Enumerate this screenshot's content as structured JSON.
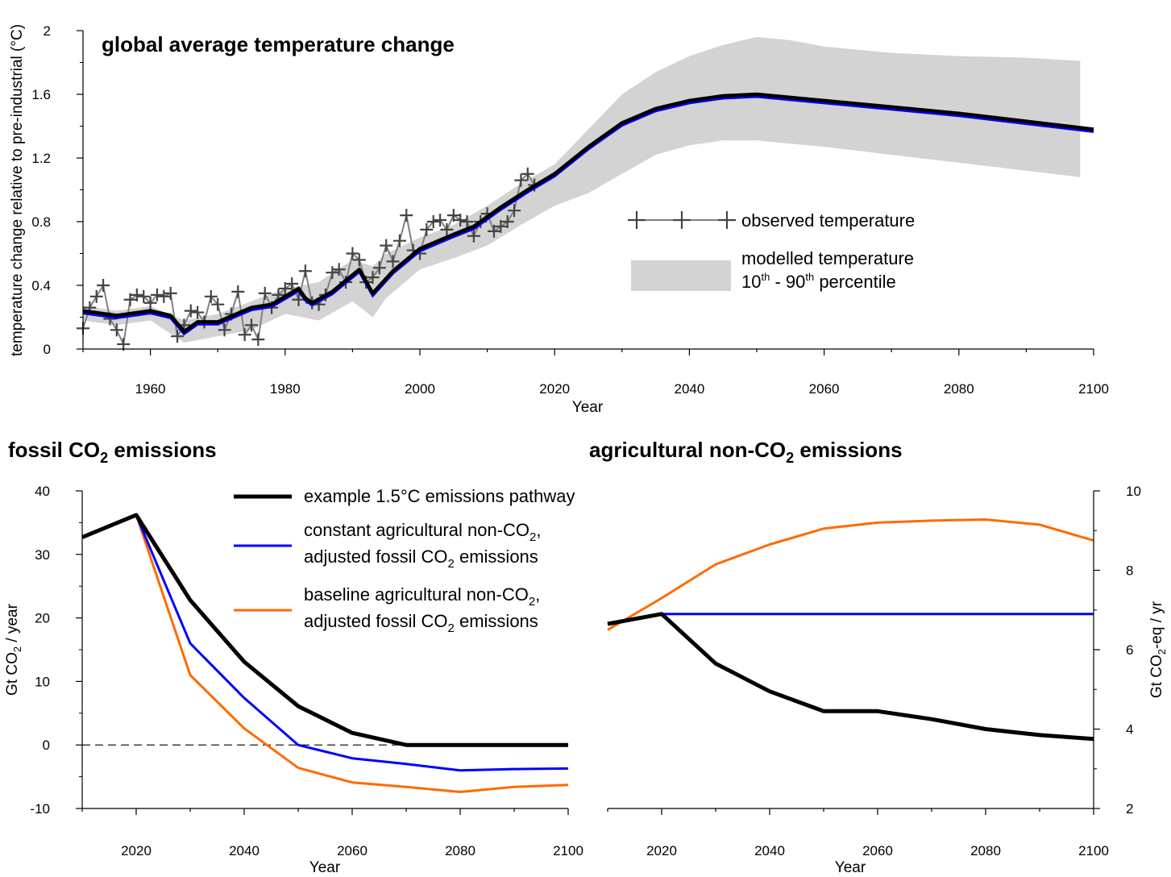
{
  "chart_data": [
    {
      "type": "line",
      "title": "global average temperature change",
      "xlabel": "Year",
      "ylabel": "temperature change relative to pre-industrial (°C)",
      "xlim": [
        1950,
        2100
      ],
      "ylim": [
        0,
        2
      ],
      "x_ticks": [
        1960,
        1980,
        2000,
        2020,
        2040,
        2060,
        2080,
        2100
      ],
      "y_ticks": [
        0,
        0.4,
        0.8,
        1.2,
        1.6,
        2
      ],
      "y_tick_labels": [
        "0",
        "0.4",
        "0.8",
        "1.2",
        "1.6",
        "2"
      ],
      "legend": {
        "observed": "observed temperature",
        "band_line1": "modelled temperature",
        "band_line2": "10th - 90th percentile"
      },
      "observed": {
        "x": [
          1950,
          1951,
          1952,
          1953,
          1954,
          1955,
          1956,
          1957,
          1958,
          1959,
          1960,
          1961,
          1962,
          1963,
          1964,
          1965,
          1966,
          1967,
          1968,
          1969,
          1970,
          1971,
          1972,
          1973,
          1974,
          1975,
          1976,
          1977,
          1978,
          1979,
          1980,
          1981,
          1982,
          1983,
          1984,
          1985,
          1986,
          1987,
          1988,
          1989,
          1990,
          1991,
          1992,
          1993,
          1994,
          1995,
          1996,
          1997,
          1998,
          1999,
          2000,
          2001,
          2002,
          2003,
          2004,
          2005,
          2006,
          2007,
          2008,
          2009,
          2010,
          2011,
          2012,
          2013,
          2014,
          2015,
          2016,
          2017
        ],
        "y": [
          0.13,
          0.26,
          0.33,
          0.4,
          0.19,
          0.12,
          0.03,
          0.31,
          0.34,
          0.33,
          0.29,
          0.34,
          0.33,
          0.35,
          0.08,
          0.15,
          0.24,
          0.23,
          0.17,
          0.33,
          0.28,
          0.12,
          0.22,
          0.36,
          0.09,
          0.15,
          0.06,
          0.35,
          0.26,
          0.34,
          0.38,
          0.41,
          0.31,
          0.49,
          0.29,
          0.28,
          0.34,
          0.48,
          0.5,
          0.42,
          0.6,
          0.56,
          0.42,
          0.45,
          0.51,
          0.65,
          0.55,
          0.68,
          0.84,
          0.62,
          0.6,
          0.75,
          0.8,
          0.81,
          0.75,
          0.84,
          0.81,
          0.8,
          0.71,
          0.8,
          0.85,
          0.74,
          0.77,
          0.8,
          0.87,
          1.06,
          1.1,
          1.03
        ]
      },
      "modelled_median": {
        "x": [
          1950,
          1955,
          1960,
          1963,
          1965,
          1967,
          1970,
          1975,
          1978,
          1982,
          1983,
          1984,
          1987,
          1991,
          1993,
          1996,
          2000,
          2005,
          2008,
          2012,
          2016,
          2020,
          2025,
          2030,
          2035,
          2040,
          2045,
          2050,
          2060,
          2070,
          2080,
          2090,
          2100
        ],
        "y": [
          0.24,
          0.21,
          0.24,
          0.21,
          0.11,
          0.17,
          0.17,
          0.26,
          0.28,
          0.38,
          0.32,
          0.29,
          0.36,
          0.5,
          0.35,
          0.49,
          0.63,
          0.72,
          0.77,
          0.89,
          1.0,
          1.1,
          1.27,
          1.42,
          1.51,
          1.56,
          1.59,
          1.6,
          1.56,
          1.52,
          1.48,
          1.43,
          1.38
        ]
      },
      "band": {
        "x": [
          1950,
          1955,
          1960,
          1965,
          1970,
          1975,
          1980,
          1985,
          1990,
          1993,
          1995,
          2000,
          2005,
          2010,
          2015,
          2020,
          2025,
          2030,
          2035,
          2040,
          2045,
          2050,
          2055,
          2060,
          2070,
          2080,
          2090,
          2098
        ],
        "lower": [
          0.18,
          0.15,
          0.18,
          0.04,
          0.08,
          0.12,
          0.22,
          0.18,
          0.3,
          0.2,
          0.32,
          0.5,
          0.57,
          0.65,
          0.78,
          0.9,
          0.98,
          1.1,
          1.22,
          1.28,
          1.31,
          1.31,
          1.29,
          1.27,
          1.22,
          1.17,
          1.12,
          1.08
        ],
        "upper": [
          0.27,
          0.24,
          0.27,
          0.18,
          0.22,
          0.3,
          0.38,
          0.42,
          0.56,
          0.52,
          0.6,
          0.7,
          0.78,
          0.9,
          1.04,
          1.16,
          1.38,
          1.6,
          1.74,
          1.84,
          1.91,
          1.96,
          1.94,
          1.9,
          1.86,
          1.84,
          1.83,
          1.81
        ]
      }
    },
    {
      "type": "line",
      "title_main": "fossil CO",
      "title_sub": "2",
      "title_tail": " emissions",
      "xlabel": "Year",
      "ylabel": "Gt CO2 / year",
      "xlim": [
        2010,
        2100
      ],
      "ylim": [
        -10,
        40
      ],
      "x_ticks": [
        2020,
        2040,
        2060,
        2080,
        2100
      ],
      "y_ticks": [
        -10,
        0,
        10,
        20,
        30,
        40
      ],
      "y_tick_labels": [
        "-10",
        "0",
        "10",
        "20",
        "30",
        "40"
      ],
      "zero_line": true,
      "series": [
        {
          "name": "example 1.5°C emissions pathway",
          "color": "#000000",
          "x": [
            2010,
            2020,
            2030,
            2040,
            2050,
            2060,
            2070,
            2080,
            2090,
            2100
          ],
          "values": [
            32.7,
            36.2,
            22.8,
            13.1,
            6.1,
            1.9,
            0,
            0,
            0,
            0
          ]
        },
        {
          "name": "constant agricultural non-CO2, adjusted fossil CO2 emissions",
          "color": "#0000ff",
          "x": [
            2010,
            2020,
            2030,
            2040,
            2050,
            2060,
            2070,
            2080,
            2090,
            2100
          ],
          "values": [
            32.7,
            36.2,
            16.0,
            7.4,
            0,
            -2.1,
            -3.0,
            -4.0,
            -3.8,
            -3.7
          ]
        },
        {
          "name": "baseline agricultural non-CO2, adjusted fossil CO2 emissions",
          "color": "#ff6a00",
          "x": [
            2010,
            2020,
            2030,
            2040,
            2050,
            2060,
            2070,
            2080,
            2090,
            2100
          ],
          "values": [
            32.7,
            36.2,
            11.0,
            2.6,
            -3.6,
            -5.9,
            -6.6,
            -7.4,
            -6.6,
            -6.3
          ]
        }
      ]
    },
    {
      "type": "line",
      "title_main": "agricultural non-CO",
      "title_sub": "2",
      "title_tail": " emissions",
      "xlabel": "Year",
      "ylabel": "Gt CO2-eq / yr",
      "xlim": [
        2010,
        2100
      ],
      "ylim": [
        2,
        10
      ],
      "x_ticks": [
        2020,
        2040,
        2060,
        2080,
        2100
      ],
      "y_ticks": [
        2,
        4,
        6,
        8,
        10
      ],
      "y_tick_labels": [
        "2",
        "4",
        "6",
        "8",
        "10"
      ],
      "series": [
        {
          "name": "example 1.5°C emissions pathway",
          "color": "#000000",
          "x": [
            2010,
            2020,
            2030,
            2040,
            2050,
            2060,
            2070,
            2080,
            2090,
            2100
          ],
          "values": [
            6.65,
            6.9,
            5.65,
            4.95,
            4.45,
            4.45,
            4.25,
            4.0,
            3.85,
            3.75
          ]
        },
        {
          "name": "constant agricultural non-CO2",
          "color": "#0000ff",
          "x": [
            2010,
            2020,
            2030,
            2040,
            2050,
            2060,
            2070,
            2080,
            2090,
            2100
          ],
          "values": [
            6.65,
            6.9,
            6.9,
            6.9,
            6.9,
            6.9,
            6.9,
            6.9,
            6.9,
            6.9
          ]
        },
        {
          "name": "baseline agricultural non-CO2",
          "color": "#ff6a00",
          "x": [
            2010,
            2020,
            2030,
            2040,
            2050,
            2060,
            2070,
            2080,
            2090,
            2100
          ],
          "values": [
            6.5,
            7.3,
            8.15,
            8.65,
            9.05,
            9.2,
            9.25,
            9.28,
            9.15,
            8.75
          ]
        }
      ]
    }
  ],
  "legend2": {
    "item1": "example 1.5°C emissions pathway",
    "item2_line1": "constant agricultural non-CO",
    "item2_line1_tail": ",",
    "item2_line2": "adjusted fossil CO",
    "item2_line2_tail": " emissions",
    "item3_line1": "baseline agricultural non-CO",
    "item3_line1_tail": ",",
    "item3_line2": "adjusted fossil CO",
    "item3_line2_tail": " emissions",
    "sub": "2"
  },
  "labels": {
    "ylab_left_main": "Gt CO",
    "ylab_left_tail": " / year",
    "ylab_right_main": "Gt CO",
    "ylab_right_tail": "-eq / yr",
    "sub": "2",
    "band_sup1": "th",
    "band_sup2": "th",
    "band_l2a": "10",
    "band_l2b": " - 90",
    "band_l2c": " percentile"
  },
  "colors": {
    "band": "#d3d3d3",
    "observed": "#808080",
    "median": "#000000",
    "blue": "#0000ff",
    "orange": "#ff6a00"
  }
}
